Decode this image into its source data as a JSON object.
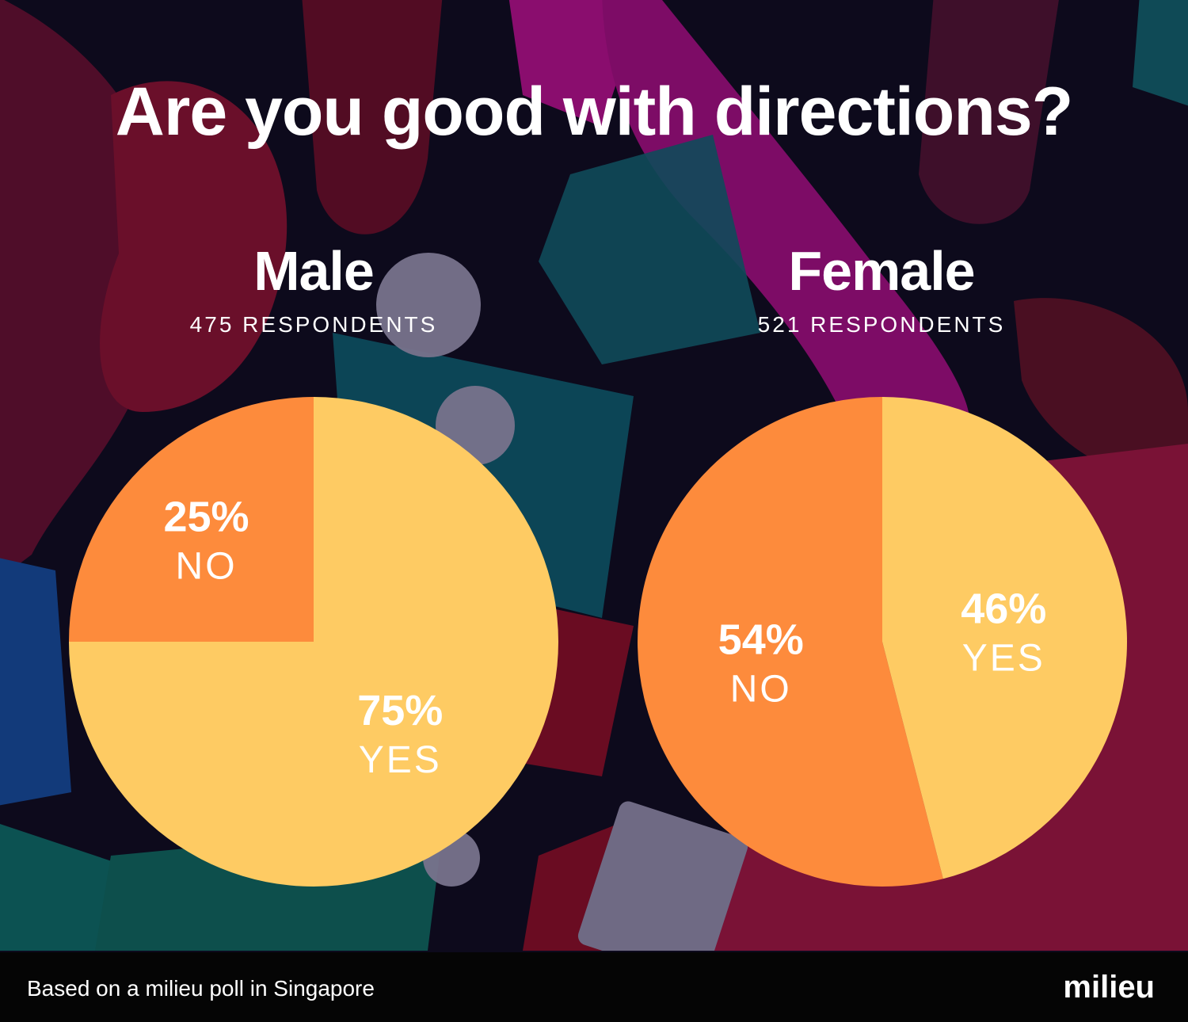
{
  "title": "Are you good with directions?",
  "colors": {
    "no": "#fd8b3c",
    "yes": "#fecb63",
    "background": "#0d0a1c",
    "label_text": "#ffffff"
  },
  "chart_data": [
    {
      "type": "pie",
      "title": "Male",
      "subtitle": "475 RESPONDENTS",
      "respondents": 475,
      "slices": [
        {
          "label": "NO",
          "value": 25,
          "value_label": "25%",
          "color": "#fd8b3c"
        },
        {
          "label": "YES",
          "value": 75,
          "value_label": "75%",
          "color": "#fecb63"
        }
      ]
    },
    {
      "type": "pie",
      "title": "Female",
      "subtitle": "521 RESPONDENTS",
      "respondents": 521,
      "slices": [
        {
          "label": "NO",
          "value": 54,
          "value_label": "54%",
          "color": "#fd8b3c"
        },
        {
          "label": "YES",
          "value": 46,
          "value_label": "46%",
          "color": "#fecb63"
        }
      ]
    }
  ],
  "footer": {
    "note": "Based on a milieu poll in Singapore",
    "logo": "milieu"
  }
}
